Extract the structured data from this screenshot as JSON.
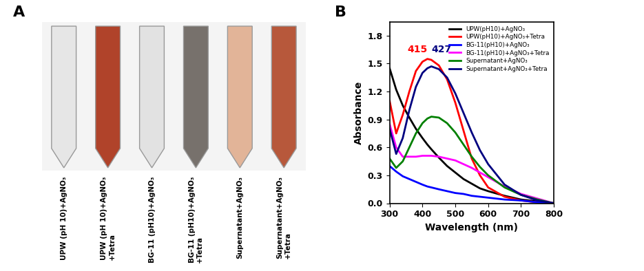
{
  "panel_a": {
    "label": "A",
    "samples": [
      {
        "label": "UPW (pH 10)+AgNO₃",
        "color": "#e6e6e6"
      },
      {
        "label": "UPW (pH 10)+AgNO₃\n+Tetra",
        "color": "#b0432a"
      },
      {
        "label": "BG-11 (pH10)+AgNO₃",
        "color": "#e2e2e2"
      },
      {
        "label": "BG-11 (pH10)+AgNO₃\n+Tetra",
        "color": "#77716c"
      },
      {
        "label": "Supernatant+AgNO₃",
        "color": "#e2b498"
      },
      {
        "label": "Supernatant+AgNO₃\n+Tetra",
        "color": "#b7583b"
      }
    ]
  },
  "chart_data": {
    "type": "line",
    "panel_label": "B",
    "x_label": "Wavelength (nm)",
    "y_label": "Absorbance",
    "xlim": [
      300,
      800
    ],
    "xticks": [
      300,
      400,
      500,
      600,
      700,
      800
    ],
    "ylim": [
      0,
      1.95
    ],
    "yticks": [
      0.0,
      0.3,
      0.6,
      0.9,
      1.2,
      1.5,
      1.8
    ],
    "legend": "upper right",
    "x": [
      300,
      320,
      340,
      360,
      380,
      400,
      415,
      427,
      450,
      475,
      500,
      525,
      550,
      575,
      600,
      650,
      700,
      750,
      800
    ],
    "series": [
      {
        "name": "UPW(pH10)+AgNO₃",
        "color": "#000000",
        "values": [
          1.45,
          1.22,
          1.05,
          0.92,
          0.8,
          0.7,
          0.63,
          0.58,
          0.49,
          0.4,
          0.33,
          0.26,
          0.21,
          0.16,
          0.13,
          0.08,
          0.04,
          0.02,
          0.0
        ]
      },
      {
        "name": "UPW(pH10)+AgNO₃+Tetra",
        "color": "#ff0000",
        "values": [
          1.1,
          0.75,
          0.95,
          1.2,
          1.42,
          1.52,
          1.55,
          1.54,
          1.48,
          1.33,
          1.08,
          0.78,
          0.48,
          0.3,
          0.17,
          0.07,
          0.03,
          0.01,
          0.0
        ]
      },
      {
        "name": "BG-11(pH10)+AgNO₃",
        "color": "#0000ff",
        "values": [
          0.4,
          0.34,
          0.29,
          0.26,
          0.23,
          0.2,
          0.18,
          0.17,
          0.15,
          0.13,
          0.11,
          0.1,
          0.08,
          0.07,
          0.06,
          0.04,
          0.03,
          0.01,
          0.0
        ]
      },
      {
        "name": "BG-11(pH10)+AgNO₃+Tetra",
        "color": "#ff00ff",
        "values": [
          0.85,
          0.6,
          0.5,
          0.5,
          0.5,
          0.51,
          0.51,
          0.51,
          0.5,
          0.48,
          0.46,
          0.42,
          0.38,
          0.33,
          0.28,
          0.18,
          0.1,
          0.05,
          0.0
        ]
      },
      {
        "name": "Supernatant+AgNO₃",
        "color": "#008000",
        "values": [
          0.48,
          0.38,
          0.45,
          0.6,
          0.75,
          0.86,
          0.91,
          0.93,
          0.92,
          0.86,
          0.76,
          0.63,
          0.5,
          0.39,
          0.3,
          0.17,
          0.09,
          0.04,
          0.0
        ]
      },
      {
        "name": "Supernatant+AgNO₃+Tetra",
        "color": "#000080",
        "values": [
          0.8,
          0.53,
          0.7,
          1.0,
          1.25,
          1.4,
          1.45,
          1.47,
          1.44,
          1.35,
          1.18,
          0.97,
          0.76,
          0.57,
          0.42,
          0.2,
          0.09,
          0.03,
          0.0
        ]
      }
    ],
    "annotations": [
      {
        "text": "415",
        "x": 415,
        "y": 1.6,
        "color": "#ff0000"
      },
      {
        "text": "427",
        "x": 427,
        "y": 1.6,
        "color": "#000080"
      }
    ]
  }
}
